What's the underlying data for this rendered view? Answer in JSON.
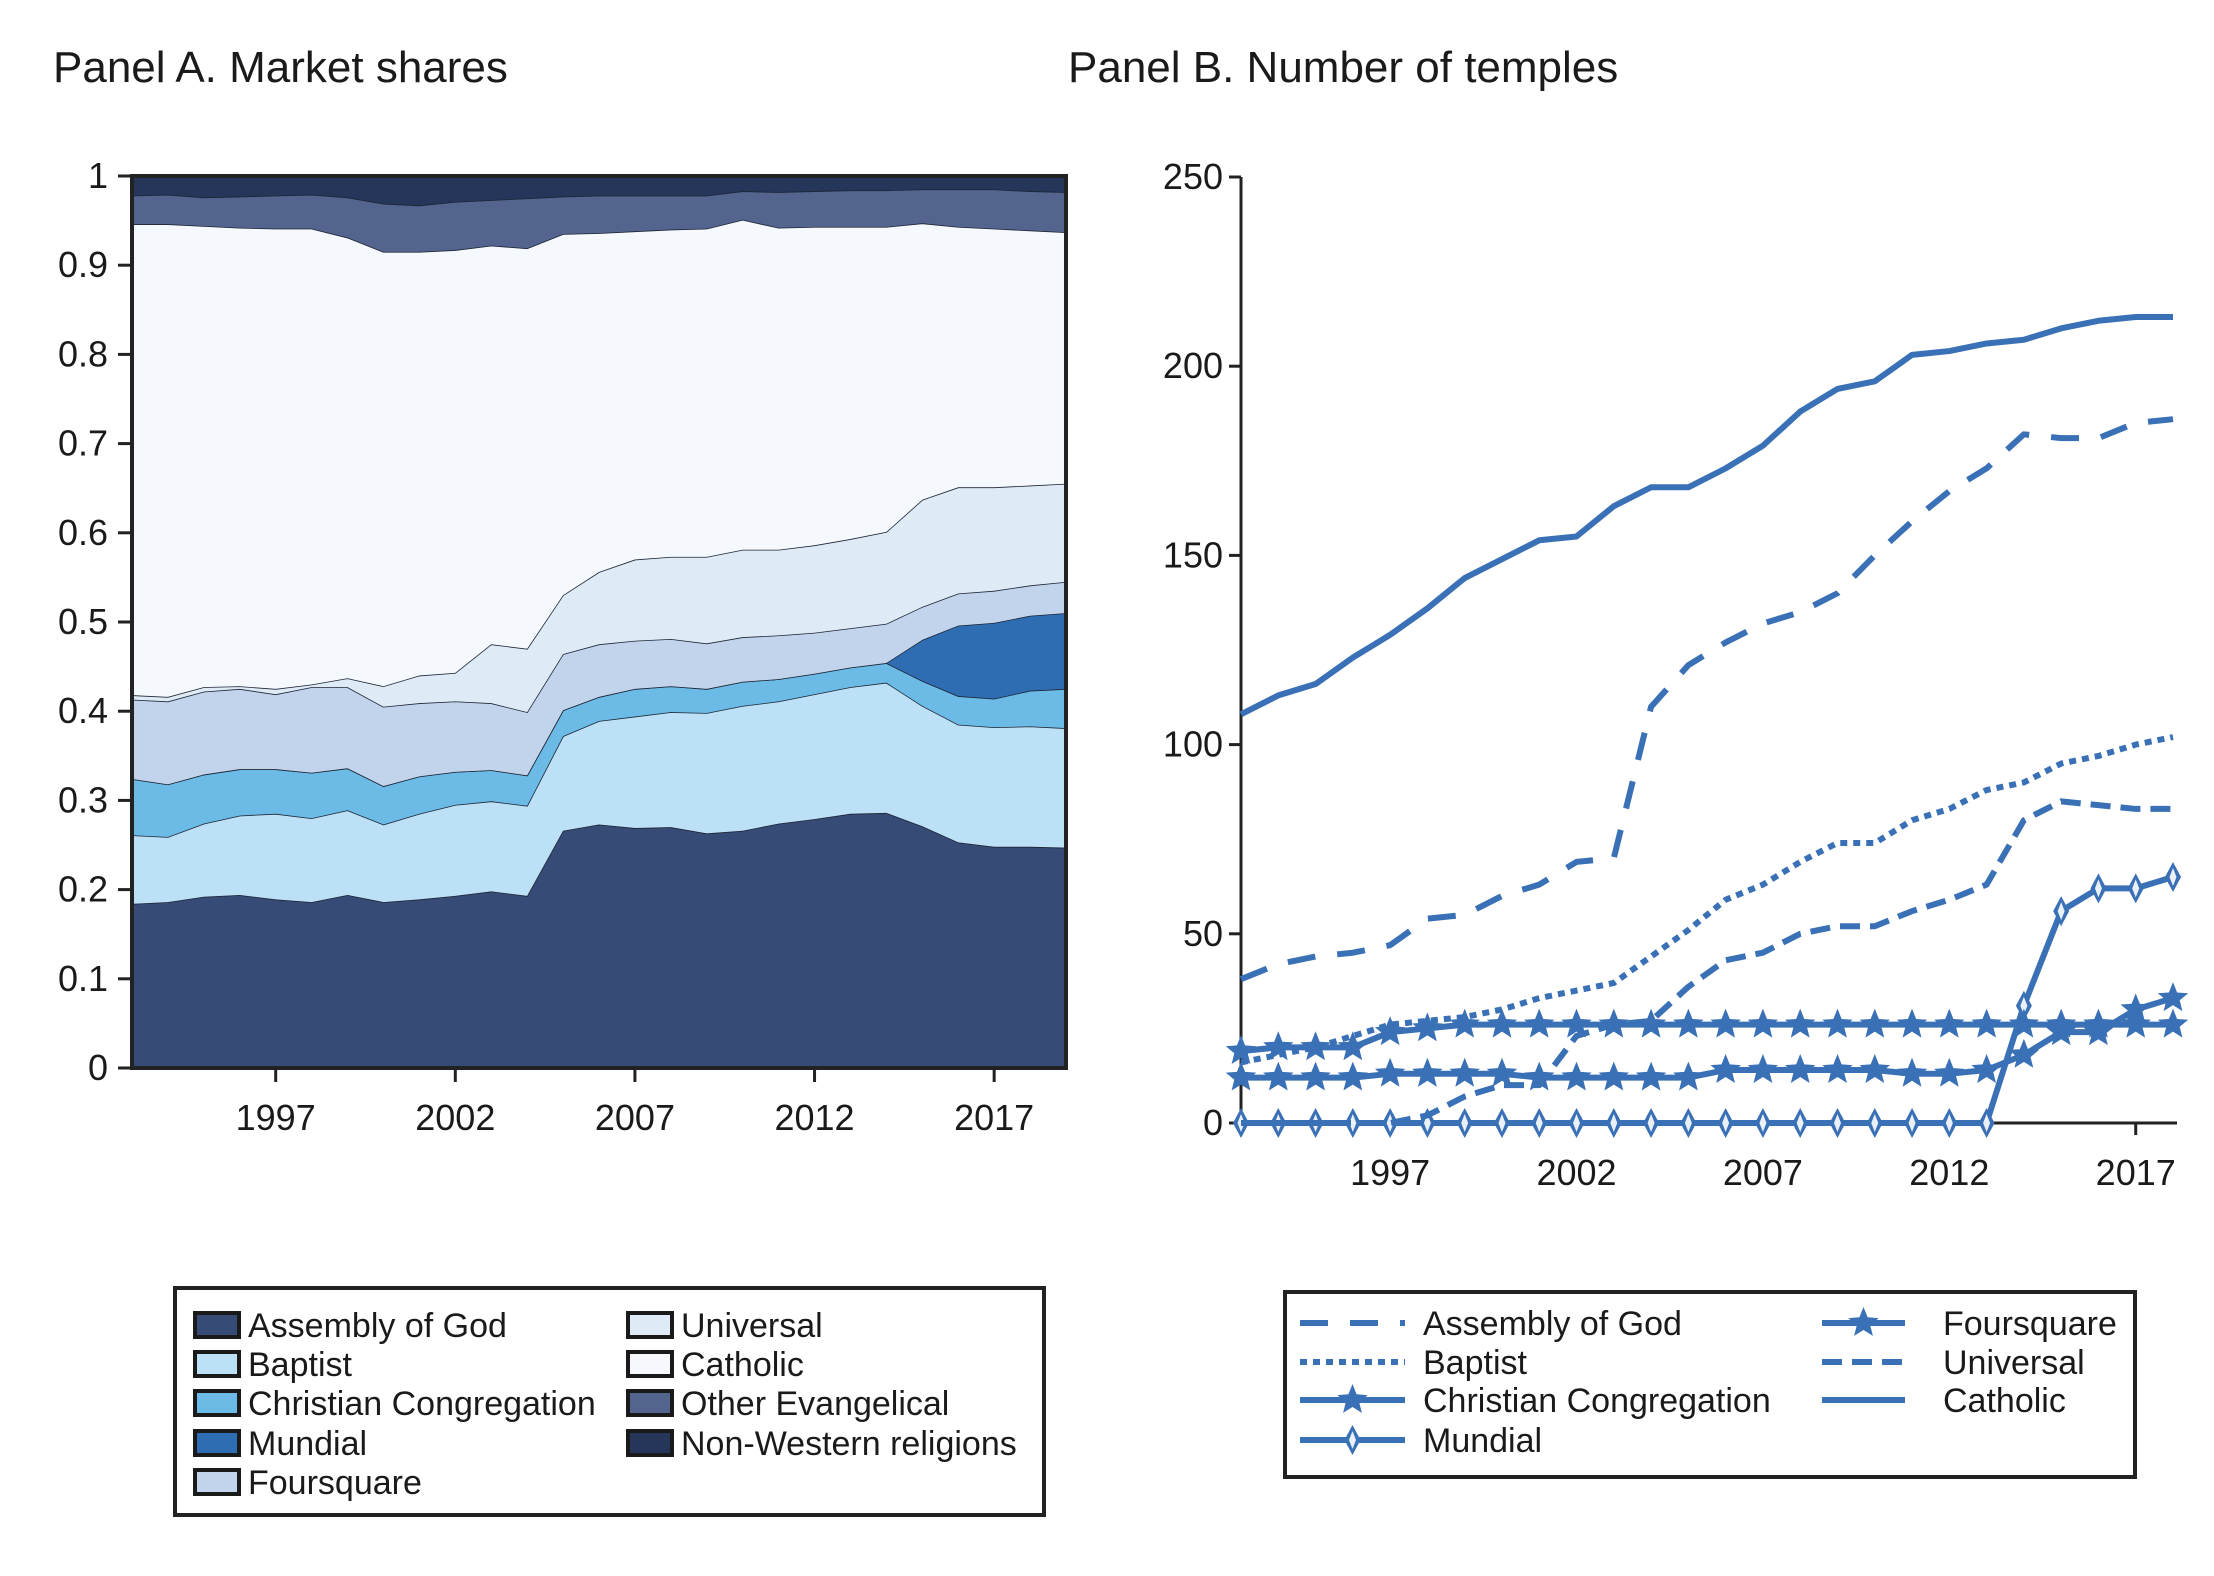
{
  "chart_data": [
    {
      "type": "area",
      "stacked": true,
      "title": "Panel A. Market shares",
      "xlabel": "",
      "ylabel": "",
      "xlim": [
        1993,
        2019
      ],
      "ylim": [
        0,
        1
      ],
      "yticks": [
        "0",
        "0.1",
        "0.2",
        "0.3",
        "0.4",
        "0.5",
        "0.6",
        "0.7",
        "0.8",
        "0.9",
        "1"
      ],
      "xticks": [
        "1997",
        "2002",
        "2007",
        "2012",
        "2017"
      ],
      "grid": false,
      "legend_position": "bottom",
      "x": [
        1993,
        1994,
        1995,
        1996,
        1997,
        1998,
        1999,
        2000,
        2001,
        2002,
        2003,
        2004,
        2005,
        2006,
        2007,
        2008,
        2009,
        2010,
        2011,
        2012,
        2013,
        2014,
        2015,
        2016,
        2017,
        2018,
        2019
      ],
      "series": [
        {
          "name": "Assembly of God",
          "color": "#374b77",
          "values": [
            0.184,
            0.186,
            0.192,
            0.194,
            0.189,
            0.186,
            0.194,
            0.186,
            0.189,
            0.193,
            0.198,
            0.193,
            0.266,
            0.273,
            0.269,
            0.27,
            0.263,
            0.266,
            0.274,
            0.279,
            0.285,
            0.286,
            0.271,
            0.253,
            0.248,
            0.248,
            0.247
          ]
        },
        {
          "name": "Baptist",
          "color": "#bce0f5",
          "values": [
            0.077,
            0.073,
            0.082,
            0.089,
            0.096,
            0.094,
            0.095,
            0.087,
            0.096,
            0.102,
            0.101,
            0.101,
            0.106,
            0.116,
            0.125,
            0.129,
            0.135,
            0.14,
            0.137,
            0.14,
            0.142,
            0.146,
            0.135,
            0.132,
            0.134,
            0.135,
            0.134
          ]
        },
        {
          "name": "Christian Congregation",
          "color": "#6bbbe6",
          "values": [
            0.063,
            0.059,
            0.055,
            0.052,
            0.05,
            0.051,
            0.047,
            0.043,
            0.042,
            0.037,
            0.035,
            0.034,
            0.029,
            0.027,
            0.031,
            0.029,
            0.027,
            0.027,
            0.025,
            0.023,
            0.022,
            0.022,
            0.028,
            0.032,
            0.032,
            0.04,
            0.044
          ]
        },
        {
          "name": "Mundial",
          "color": "#2f6db3",
          "values": [
            0,
            0,
            0,
            0,
            0,
            0,
            0,
            0,
            0,
            0,
            0,
            0,
            0,
            0,
            0,
            0,
            0,
            0,
            0,
            0,
            0,
            0,
            0.046,
            0.079,
            0.085,
            0.084,
            0.085
          ]
        },
        {
          "name": "Foursquare",
          "color": "#c1d4ec",
          "values": [
            0.089,
            0.093,
            0.093,
            0.09,
            0.084,
            0.096,
            0.091,
            0.089,
            0.082,
            0.079,
            0.075,
            0.071,
            0.063,
            0.059,
            0.054,
            0.053,
            0.051,
            0.05,
            0.049,
            0.046,
            0.044,
            0.044,
            0.037,
            0.036,
            0.036,
            0.034,
            0.035
          ]
        },
        {
          "name": "Universal",
          "color": "#dfeaf7",
          "values": [
            0.005,
            0.005,
            0.005,
            0.003,
            0.006,
            0.003,
            0.01,
            0.023,
            0.031,
            0.032,
            0.066,
            0.071,
            0.066,
            0.081,
            0.091,
            0.092,
            0.097,
            0.098,
            0.096,
            0.098,
            0.1,
            0.103,
            0.12,
            0.119,
            0.116,
            0.112,
            0.11
          ]
        },
        {
          "name": "Catholic",
          "color": "#f5f9fe",
          "values": [
            0.528,
            0.53,
            0.517,
            0.514,
            0.516,
            0.511,
            0.494,
            0.487,
            0.475,
            0.474,
            0.447,
            0.449,
            0.405,
            0.38,
            0.368,
            0.367,
            0.368,
            0.37,
            0.361,
            0.357,
            0.35,
            0.342,
            0.31,
            0.292,
            0.29,
            0.286,
            0.282
          ]
        },
        {
          "name": "Other Evangelical",
          "color": "#53648f",
          "values": [
            0.032,
            0.033,
            0.032,
            0.035,
            0.037,
            0.038,
            0.045,
            0.054,
            0.052,
            0.054,
            0.051,
            0.056,
            0.042,
            0.042,
            0.04,
            0.038,
            0.037,
            0.032,
            0.04,
            0.04,
            0.041,
            0.041,
            0.038,
            0.042,
            0.044,
            0.044,
            0.045
          ]
        },
        {
          "name": "Non-Western religions",
          "color": "#26355a",
          "values": [
            0.022,
            0.021,
            0.024,
            0.023,
            0.022,
            0.021,
            0.024,
            0.031,
            0.033,
            0.029,
            0.027,
            0.025,
            0.023,
            0.022,
            0.022,
            0.022,
            0.022,
            0.017,
            0.018,
            0.017,
            0.016,
            0.016,
            0.015,
            0.015,
            0.015,
            0.017,
            0.018
          ]
        }
      ]
    },
    {
      "type": "line",
      "title": "Panel B. Number of temples",
      "xlabel": "",
      "ylabel": "",
      "xlim": [
        1993,
        2018
      ],
      "ylim": [
        0,
        250
      ],
      "yticks": [
        "0",
        "50",
        "100",
        "150",
        "200",
        "250"
      ],
      "xticks": [
        "1997",
        "2002",
        "2007",
        "2012",
        "2017"
      ],
      "grid": false,
      "legend_position": "bottom",
      "line_color": "#3a70b5",
      "x": [
        1993,
        1994,
        1995,
        1996,
        1997,
        1998,
        1999,
        2000,
        2001,
        2002,
        2003,
        2004,
        2005,
        2006,
        2007,
        2008,
        2009,
        2010,
        2011,
        2012,
        2013,
        2014,
        2015,
        2016,
        2017,
        2018
      ],
      "series": [
        {
          "name": "Assembly of God",
          "style": "long-dash",
          "marker": "none",
          "values": [
            38,
            42,
            44,
            45,
            47,
            54,
            55,
            60,
            63,
            69,
            70,
            110,
            121,
            127,
            132,
            135,
            140,
            150,
            159,
            167,
            173,
            182,
            181,
            181,
            185,
            186
          ]
        },
        {
          "name": "Baptist",
          "style": "dotted",
          "marker": "none",
          "values": [
            16,
            18,
            20,
            23,
            26,
            27,
            28,
            30,
            33,
            35,
            37,
            44,
            51,
            59,
            63,
            69,
            74,
            74,
            80,
            83,
            88,
            90,
            95,
            97,
            100,
            102
          ]
        },
        {
          "name": "Christian Congregation",
          "style": "solid",
          "marker": "star",
          "values": [
            12,
            12,
            12,
            12,
            13,
            13,
            13,
            13,
            12,
            12,
            12,
            12,
            12,
            14,
            14,
            14,
            14,
            14,
            13,
            13,
            14,
            18,
            24,
            24,
            30,
            33
          ]
        },
        {
          "name": "Mundial",
          "style": "solid",
          "marker": "diamond",
          "values": [
            0,
            0,
            0,
            0,
            0,
            0,
            0,
            0,
            0,
            0,
            0,
            0,
            0,
            0,
            0,
            0,
            0,
            0,
            0,
            0,
            0,
            31,
            56,
            62,
            62,
            65
          ]
        },
        {
          "name": "Foursquare",
          "style": "solid",
          "marker": "star",
          "values": [
            19,
            20,
            20,
            20,
            24,
            25,
            26,
            26,
            26,
            26,
            26,
            26,
            26,
            26,
            26,
            26,
            26,
            26,
            26,
            26,
            26,
            26,
            26,
            26,
            26,
            26
          ]
        },
        {
          "name": "Universal",
          "style": "dash",
          "marker": "none",
          "values": [
            0,
            0,
            0,
            0,
            0,
            2,
            7,
            10,
            10,
            23,
            26,
            27,
            36,
            43,
            45,
            50,
            52,
            52,
            56,
            59,
            63,
            80,
            85,
            84,
            83,
            83
          ]
        },
        {
          "name": "Catholic",
          "style": "solid",
          "marker": "none",
          "values": [
            108,
            113,
            116,
            123,
            129,
            136,
            144,
            149,
            154,
            155,
            163,
            168,
            168,
            173,
            179,
            188,
            194,
            196,
            203,
            204,
            206,
            207,
            210,
            212,
            213,
            213
          ]
        }
      ]
    }
  ]
}
